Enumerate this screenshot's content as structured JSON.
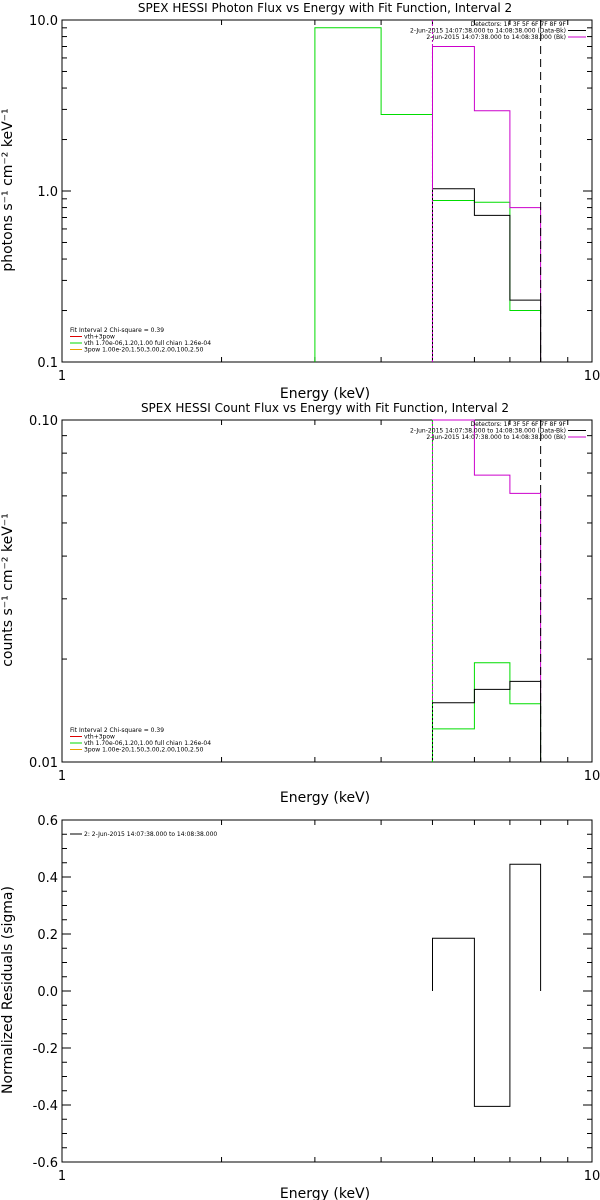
{
  "colors": {
    "background": "#ffffff",
    "axes": "#000000",
    "green": "#00dd00",
    "magenta": "#cc00cc",
    "black": "#000000",
    "red": "#dd0000",
    "orange": "#e8a000"
  },
  "chart_data": [
    {
      "type": "line",
      "title": "SPEX HESSI Photon Flux vs Energy with Fit Function, Interval 2",
      "xlabel": "Energy (keV)",
      "ylabel": "photons s⁻¹ cm⁻² keV⁻¹",
      "xscale": "log",
      "yscale": "log",
      "xlim": [
        1,
        10
      ],
      "ylim": [
        0.1,
        10
      ],
      "xticks": [
        {
          "v": 1,
          "label": "1"
        },
        {
          "v": 10,
          "label": "10"
        }
      ],
      "yticks": [
        {
          "v": 0.1,
          "label": "0.1"
        },
        {
          "v": 1,
          "label": "1.0"
        },
        {
          "v": 10,
          "label": "10.0"
        }
      ],
      "vlines": [
        {
          "x": 5.0,
          "color": "magenta",
          "dash": "2,2"
        },
        {
          "x": 8.0,
          "color": "black",
          "dash": "8,5"
        }
      ],
      "series": [
        {
          "color": "green",
          "edges": [
            3.0,
            4.0,
            5.0,
            6.0,
            7.0,
            8.0
          ],
          "values": [
            9.0,
            2.8,
            0.88,
            0.86,
            0.2
          ]
        },
        {
          "color": "magenta",
          "edges": [
            5.0,
            6.0,
            7.0,
            8.0
          ],
          "values": [
            7.0,
            2.95,
            0.8
          ]
        },
        {
          "color": "black",
          "edges": [
            5.0,
            6.0,
            7.0,
            8.0
          ],
          "values": [
            1.03,
            0.72,
            0.23
          ]
        }
      ],
      "legend_right": [
        {
          "text": "Detectors: 1F 3F 5F 6F 7F 8F 9F",
          "color": "none"
        },
        {
          "text": "2-Jun-2015 14:07:38.000 to 14:08:38.000 (Data-Bk)",
          "color": "black"
        },
        {
          "text": "2-Jun-2015 14:07:38.000 to 14:08:38.000 (Bk)",
          "color": "magenta"
        }
      ],
      "legend_left": [
        {
          "text": "Fit Interval 2   Chi-square = 0.39",
          "color": "none"
        },
        {
          "text": "vth+3pow",
          "color": "red"
        },
        {
          "text": "vth 1.70e-06,1.20,1.00  full chian 1.26e-04",
          "color": "green"
        },
        {
          "text": "3pow 1.00e-20,1.50,3.00,2.00,100,2.50",
          "color": "orange"
        }
      ]
    },
    {
      "type": "line",
      "title": "SPEX HESSI Count Flux vs Energy with Fit Function, Interval 2",
      "xlabel": "Energy (keV)",
      "ylabel": "counts s⁻¹ cm⁻² keV⁻¹",
      "xscale": "log",
      "yscale": "log",
      "xlim": [
        1,
        10
      ],
      "ylim": [
        0.01,
        0.1
      ],
      "xticks": [
        {
          "v": 1,
          "label": "1"
        },
        {
          "v": 10,
          "label": "10"
        }
      ],
      "yticks": [
        {
          "v": 0.01,
          "label": "0.01"
        },
        {
          "v": 0.1,
          "label": "0.10"
        }
      ],
      "vlines": [
        {
          "x": 5.0,
          "color": "green",
          "dash": "2,2"
        },
        {
          "x": 8.0,
          "color": "black",
          "dash": "8,5"
        }
      ],
      "series": [
        {
          "color": "magenta",
          "edges": [
            5.0,
            6.0,
            7.0,
            8.0
          ],
          "values": [
            0.1,
            0.069,
            0.061
          ]
        },
        {
          "color": "green",
          "edges": [
            5.0,
            6.0,
            7.0,
            8.0
          ],
          "values": [
            0.0125,
            0.0195,
            0.0148
          ]
        },
        {
          "color": "black",
          "edges": [
            5.0,
            6.0,
            7.0,
            8.0
          ],
          "values": [
            0.0149,
            0.0163,
            0.0172
          ]
        }
      ],
      "legend_right": [
        {
          "text": "Detectors: 1F 3F 5F 6F 7F 8F 9F",
          "color": "none"
        },
        {
          "text": "2-Jun-2015 14:07:38.000 to 14:08:38.000 (Data-Bk)",
          "color": "black"
        },
        {
          "text": "2-Jun-2015 14:07:38.000 to 14:08:38.000 (Bk)",
          "color": "magenta"
        }
      ],
      "legend_left": [
        {
          "text": "Fit Interval 2   Chi-square = 0.39",
          "color": "none"
        },
        {
          "text": "vth+3pow",
          "color": "red"
        },
        {
          "text": "vth 1.70e-06,1.20,1.00  full chian 1.26e-04",
          "color": "green"
        },
        {
          "text": "3pow 1.00e-20,1.50,3.00,2.00,100,2.50",
          "color": "orange"
        }
      ]
    },
    {
      "type": "line",
      "title": "",
      "xlabel": "Energy (keV)",
      "ylabel": "Normalized Residuals (sigma)",
      "xscale": "log",
      "yscale": "linear",
      "xlim": [
        1,
        10
      ],
      "ylim": [
        -0.6,
        0.6
      ],
      "xticks": [
        {
          "v": 1,
          "label": "1"
        },
        {
          "v": 10,
          "label": "10"
        }
      ],
      "yticks": [
        {
          "v": -0.6,
          "label": "-0.6"
        },
        {
          "v": -0.4,
          "label": "-0.4"
        },
        {
          "v": -0.2,
          "label": "-0.2"
        },
        {
          "v": 0.0,
          "label": "0.0"
        },
        {
          "v": 0.2,
          "label": "0.2"
        },
        {
          "v": 0.4,
          "label": "0.4"
        },
        {
          "v": 0.6,
          "label": "0.6"
        }
      ],
      "vlines": [],
      "series": [
        {
          "color": "black",
          "edges": [
            5.0,
            6.0,
            7.0,
            8.0
          ],
          "values": [
            0.185,
            -0.405,
            0.445
          ]
        }
      ],
      "legend_right": [],
      "legend_left": [
        {
          "text": "2:  2-Jun-2015 14:07:38.000 to 14:08:38.000",
          "color": "black"
        }
      ]
    }
  ]
}
